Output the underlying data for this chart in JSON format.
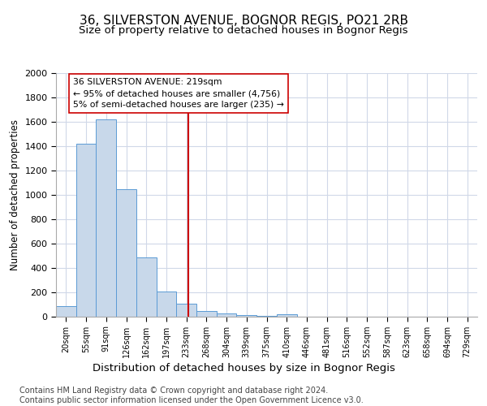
{
  "title1": "36, SILVERSTON AVENUE, BOGNOR REGIS, PO21 2RB",
  "title2": "Size of property relative to detached houses in Bognor Regis",
  "xlabel": "Distribution of detached houses by size in Bognor Regis",
  "ylabel": "Number of detached properties",
  "bin_labels": [
    "20sqm",
    "55sqm",
    "91sqm",
    "126sqm",
    "162sqm",
    "197sqm",
    "233sqm",
    "268sqm",
    "304sqm",
    "339sqm",
    "375sqm",
    "410sqm",
    "446sqm",
    "481sqm",
    "516sqm",
    "552sqm",
    "587sqm",
    "623sqm",
    "658sqm",
    "694sqm",
    "729sqm"
  ],
  "bar_heights": [
    85,
    1420,
    1620,
    1050,
    490,
    205,
    110,
    45,
    30,
    15,
    10,
    20,
    0,
    0,
    0,
    0,
    0,
    0,
    0,
    0,
    0
  ],
  "bar_color": "#c8d8ea",
  "bar_edge_color": "#5b9bd5",
  "vline_color": "#cc0000",
  "annotation_text": "36 SILVERSTON AVENUE: 219sqm\n← 95% of detached houses are smaller (4,756)\n5% of semi-detached houses are larger (235) →",
  "annotation_box_color": "#ffffff",
  "annotation_box_edge_color": "#cc0000",
  "ylim": [
    0,
    2000
  ],
  "yticks": [
    0,
    200,
    400,
    600,
    800,
    1000,
    1200,
    1400,
    1600,
    1800,
    2000
  ],
  "footnote": "Contains HM Land Registry data © Crown copyright and database right 2024.\nContains public sector information licensed under the Open Government Licence v3.0.",
  "bg_color": "#ffffff",
  "plot_bg_color": "#ffffff",
  "grid_color": "#d0d8e8",
  "title1_fontsize": 11,
  "title2_fontsize": 9.5,
  "xlabel_fontsize": 9.5,
  "ylabel_fontsize": 8.5,
  "footnote_fontsize": 7.0
}
